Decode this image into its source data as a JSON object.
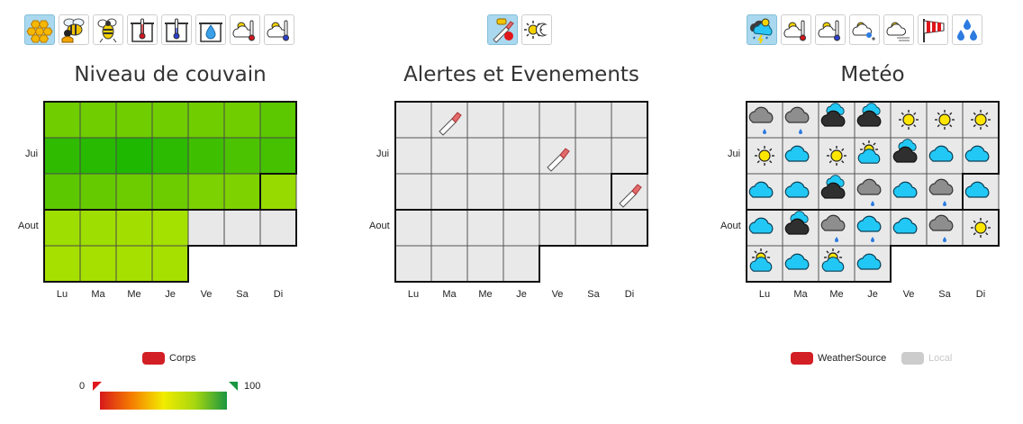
{
  "brood": {
    "title": "Niveau de couvain",
    "toolbar": [
      "honeycomb-icon",
      "bee-honey-icon",
      "bee-icon",
      "hive-temperature-icon",
      "hive-temperature-inside-icon",
      "hive-humidity-icon",
      "weather-temperature-icon",
      "weather-temperature-cold-icon"
    ],
    "active_tool": 0,
    "row_labels": [
      {
        "row": 1,
        "label": "Jui"
      },
      {
        "row": 3,
        "label": "Aout"
      }
    ],
    "day_labels": [
      "Lu",
      "Ma",
      "Me",
      "Je",
      "Ve",
      "Sa",
      "Di"
    ],
    "cells": [
      [
        "#6fcd00",
        "#6fcd00",
        "#6fcd00",
        "#6fcd00",
        "#6fcd00",
        "#6fcd00",
        "#5cc800"
      ],
      [
        "#2fbc00",
        "#28ba00",
        "#1fb800",
        "#2cbb00",
        "#3ec000",
        "#4cc300",
        "#45c100"
      ],
      [
        "#5cc800",
        "#66ca00",
        "#6ccc00",
        "#6ccc00",
        "#7cd100",
        "#7ed200",
        "#96da00"
      ],
      [
        "#9ede00",
        "#9ede00",
        "#a2df00",
        "#a4e000",
        "#e8e8e8",
        "#e8e8e8",
        "#e8e8e8"
      ],
      [
        "#a6e000",
        "#a6e000",
        "#a6e000",
        "#a6e000",
        null,
        null,
        null
      ]
    ],
    "month_boundaries": [
      {
        "row_after": 2,
        "col_from": 6
      },
      {
        "row_after": 3,
        "col_to": 4
      }
    ],
    "legend": {
      "label": "Corps",
      "color": "#d21f26"
    },
    "scale": {
      "min_label": "0",
      "max_label": "100"
    }
  },
  "alerts": {
    "title": "Alertes et Evenements",
    "toolbar": [
      "hive-tool-alert-icon",
      "sun-moon-icon"
    ],
    "active_tool": 0,
    "row_labels": [
      {
        "row": 1,
        "label": "Jui"
      },
      {
        "row": 3,
        "label": "Aout"
      }
    ],
    "day_labels": [
      "Lu",
      "Ma",
      "Me",
      "Je",
      "Ve",
      "Sa",
      "Di"
    ],
    "events": [
      {
        "row": 0,
        "col": 1,
        "icon": "hive-tool-icon"
      },
      {
        "row": 1,
        "col": 4,
        "icon": "hive-tool-icon"
      },
      {
        "row": 2,
        "col": 6,
        "icon": "hive-tool-icon"
      }
    ],
    "month_boundaries": [
      {
        "row_after": 2,
        "col_from": 6
      },
      {
        "row_after": 3,
        "col_to": 4
      }
    ],
    "rows": [
      7,
      7,
      7,
      7,
      4
    ]
  },
  "weather": {
    "title": "Metéo",
    "toolbar": [
      "weather-storm-icon",
      "weather-temperature-icon",
      "weather-temperature-cold-icon",
      "weather-rain-snow-icon",
      "weather-fog-icon",
      "windsock-icon",
      "raindrops-icon"
    ],
    "active_tool": 0,
    "row_labels": [
      {
        "row": 1,
        "label": "Jui"
      },
      {
        "row": 3,
        "label": "Aout"
      }
    ],
    "day_labels": [
      "Lu",
      "Ma",
      "Me",
      "Je",
      "Ve",
      "Sa",
      "Di"
    ],
    "cells": [
      [
        "grey-cloud-rain",
        "grey-cloud-rain",
        "dark-cloud-blue",
        "dark-cloud-blue",
        "sun",
        "sun",
        "sun"
      ],
      [
        "sun",
        "blue-cloud",
        "sun",
        "sun-cloud",
        "dark-cloud-blue",
        "blue-cloud",
        "blue-cloud"
      ],
      [
        "blue-cloud",
        "blue-cloud",
        "dark-cloud-blue",
        "grey-cloud-rain",
        "blue-cloud",
        "grey-cloud-rain",
        "blue-cloud"
      ],
      [
        "blue-cloud",
        "dark-cloud-blue",
        "grey-cloud-rain",
        "blue-cloud-rain",
        "blue-cloud",
        "grey-cloud-rain",
        "sun"
      ],
      [
        "sun-cloud",
        "blue-cloud",
        "sun-cloud",
        "blue-cloud",
        null,
        null,
        null
      ]
    ],
    "month_boundaries": [
      {
        "row_after": 2,
        "col_from": 6
      },
      {
        "row_after": 3,
        "col_to": 4
      }
    ],
    "legend": [
      {
        "label": "WeatherSource",
        "color": "#d21f26",
        "enabled": true
      },
      {
        "label": "Local",
        "color": "#cccccc",
        "enabled": false
      }
    ]
  }
}
